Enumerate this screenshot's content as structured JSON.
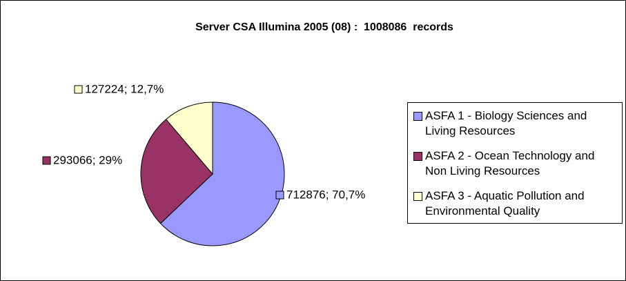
{
  "chart_data": {
    "type": "pie",
    "title": "Server CSA Illumina 2005 (08) :  1008086  records",
    "labels": [
      "ASFA 1 - Biology Sciences and Living Resources",
      "ASFA 2 - Ocean Technology and Non Living Resources",
      "ASFA 3 - Aquatic Pollution and Environmental Quality"
    ],
    "values": [
      712876,
      293066,
      127224
    ],
    "value_labels": [
      "712876; 70,7%",
      "293066; 29%",
      "127224; 12,7%"
    ],
    "colors": [
      "#9999ff",
      "#993366",
      "#ffffcc"
    ],
    "legend": "right"
  }
}
